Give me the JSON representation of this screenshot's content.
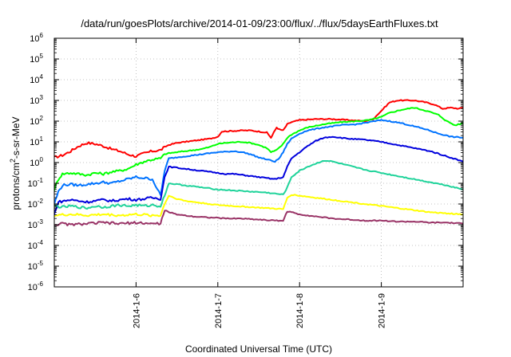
{
  "chart_data": {
    "type": "line",
    "title": "/data/run/goesPlots/archive/2014-01-09/23:00/flux/../flux/5daysEarthFluxes.txt",
    "xlabel": "Coordinated Universal Time (UTC)",
    "ylabel_parts": {
      "base": "protons/cm",
      "sup": "2",
      "rest": "-s-sr-MeV"
    },
    "log_y": true,
    "grid": true,
    "xlim": [
      5.0,
      10.0
    ],
    "ylim_exp": [
      -6,
      6
    ],
    "x_ticks": [
      {
        "value": 6,
        "label": "2014-1-6"
      },
      {
        "value": 7,
        "label": "2014-1-7"
      },
      {
        "value": 8,
        "label": "2014-1-8"
      },
      {
        "value": 9,
        "label": "2014-1-9"
      }
    ],
    "y_tick_base": "10",
    "y_ticks": [
      "-6",
      "-5",
      "-4",
      "-3",
      "-2",
      "-1",
      "0",
      "1",
      "2",
      "3",
      "4",
      "5",
      "6"
    ],
    "series": [
      {
        "color": "#ff0000",
        "log10_values": [
          [
            5.0,
            0.25
          ],
          [
            5.1,
            0.35
          ],
          [
            5.2,
            0.55
          ],
          [
            5.3,
            0.8
          ],
          [
            5.4,
            0.95
          ],
          [
            5.5,
            0.9
          ],
          [
            5.6,
            0.8
          ],
          [
            5.7,
            0.65
          ],
          [
            5.8,
            0.55
          ],
          [
            5.9,
            0.4
          ],
          [
            6.0,
            0.3
          ],
          [
            6.1,
            0.45
          ],
          [
            6.2,
            0.55
          ],
          [
            6.3,
            0.6
          ],
          [
            6.35,
            0.75
          ],
          [
            6.4,
            0.85
          ],
          [
            6.5,
            0.95
          ],
          [
            6.6,
            1.0
          ],
          [
            6.7,
            1.05
          ],
          [
            6.8,
            1.1
          ],
          [
            6.9,
            1.15
          ],
          [
            7.0,
            1.25
          ],
          [
            7.05,
            1.5
          ],
          [
            7.15,
            1.52
          ],
          [
            7.3,
            1.55
          ],
          [
            7.4,
            1.55
          ],
          [
            7.5,
            1.5
          ],
          [
            7.6,
            1.45
          ],
          [
            7.65,
            1.2
          ],
          [
            7.72,
            1.7
          ],
          [
            7.75,
            1.6
          ],
          [
            7.8,
            1.55
          ],
          [
            7.85,
            1.85
          ],
          [
            7.9,
            1.95
          ],
          [
            8.0,
            2.05
          ],
          [
            8.2,
            2.1
          ],
          [
            8.4,
            2.1
          ],
          [
            8.6,
            2.05
          ],
          [
            8.8,
            2.0
          ],
          [
            8.9,
            2.1
          ],
          [
            9.0,
            2.5
          ],
          [
            9.1,
            2.9
          ],
          [
            9.2,
            3.0
          ],
          [
            9.4,
            3.0
          ],
          [
            9.55,
            2.9
          ],
          [
            9.65,
            2.8
          ],
          [
            9.75,
            2.6
          ],
          [
            9.85,
            2.65
          ],
          [
            9.95,
            2.6
          ],
          [
            10.0,
            2.65
          ]
        ]
      },
      {
        "color": "#00ff00",
        "log10_values": [
          [
            5.0,
            -1.3
          ],
          [
            5.05,
            -0.8
          ],
          [
            5.1,
            -0.55
          ],
          [
            5.2,
            -0.5
          ],
          [
            5.3,
            -0.55
          ],
          [
            5.4,
            -0.6
          ],
          [
            5.5,
            -0.5
          ],
          [
            5.6,
            -0.55
          ],
          [
            5.7,
            -0.45
          ],
          [
            5.8,
            -0.4
          ],
          [
            5.9,
            -0.3
          ],
          [
            6.0,
            -0.1
          ],
          [
            6.1,
            0.05
          ],
          [
            6.2,
            0.15
          ],
          [
            6.3,
            0.2
          ],
          [
            6.35,
            0.4
          ],
          [
            6.4,
            0.45
          ],
          [
            6.5,
            0.5
          ],
          [
            6.6,
            0.55
          ],
          [
            6.7,
            0.6
          ],
          [
            6.8,
            0.65
          ],
          [
            6.9,
            0.75
          ],
          [
            7.0,
            0.9
          ],
          [
            7.1,
            0.95
          ],
          [
            7.2,
            0.98
          ],
          [
            7.3,
            1.0
          ],
          [
            7.4,
            0.95
          ],
          [
            7.5,
            0.85
          ],
          [
            7.6,
            0.7
          ],
          [
            7.65,
            0.5
          ],
          [
            7.72,
            0.6
          ],
          [
            7.8,
            0.9
          ],
          [
            7.85,
            1.2
          ],
          [
            7.9,
            1.35
          ],
          [
            8.0,
            1.55
          ],
          [
            8.1,
            1.7
          ],
          [
            8.3,
            1.85
          ],
          [
            8.5,
            1.95
          ],
          [
            8.7,
            2.0
          ],
          [
            8.85,
            2.05
          ],
          [
            9.0,
            2.2
          ],
          [
            9.1,
            2.4
          ],
          [
            9.25,
            2.55
          ],
          [
            9.4,
            2.65
          ],
          [
            9.55,
            2.5
          ],
          [
            9.7,
            2.3
          ],
          [
            9.8,
            2.0
          ],
          [
            9.9,
            1.8
          ],
          [
            10.0,
            1.9
          ]
        ]
      },
      {
        "color": "#0073ff",
        "log10_values": [
          [
            5.0,
            -2.0
          ],
          [
            5.05,
            -1.4
          ],
          [
            5.1,
            -1.1
          ],
          [
            5.2,
            -1.05
          ],
          [
            5.3,
            -1.1
          ],
          [
            5.4,
            -1.05
          ],
          [
            5.5,
            -1.0
          ],
          [
            5.6,
            -0.95
          ],
          [
            5.7,
            -1.0
          ],
          [
            5.8,
            -0.9
          ],
          [
            5.9,
            -0.8
          ],
          [
            6.0,
            -0.7
          ],
          [
            6.1,
            -0.75
          ],
          [
            6.2,
            -0.8
          ],
          [
            6.3,
            -1.6
          ],
          [
            6.35,
            -0.4
          ],
          [
            6.4,
            0.2
          ],
          [
            6.5,
            0.25
          ],
          [
            6.6,
            0.3
          ],
          [
            6.7,
            0.35
          ],
          [
            6.8,
            0.4
          ],
          [
            6.9,
            0.45
          ],
          [
            7.0,
            0.5
          ],
          [
            7.1,
            0.52
          ],
          [
            7.2,
            0.55
          ],
          [
            7.3,
            0.5
          ],
          [
            7.4,
            0.4
          ],
          [
            7.5,
            0.25
          ],
          [
            7.6,
            0.15
          ],
          [
            7.7,
            0.05
          ],
          [
            7.75,
            0.2
          ],
          [
            7.8,
            0.5
          ],
          [
            7.85,
            0.9
          ],
          [
            7.9,
            1.15
          ],
          [
            8.0,
            1.4
          ],
          [
            8.1,
            1.55
          ],
          [
            8.3,
            1.7
          ],
          [
            8.5,
            1.8
          ],
          [
            8.7,
            1.85
          ],
          [
            8.85,
            1.95
          ],
          [
            9.0,
            2.05
          ],
          [
            9.1,
            2.0
          ],
          [
            9.25,
            1.9
          ],
          [
            9.4,
            1.75
          ],
          [
            9.55,
            1.6
          ],
          [
            9.7,
            1.4
          ],
          [
            9.85,
            1.25
          ],
          [
            10.0,
            1.2
          ]
        ]
      },
      {
        "color": "#0000dd",
        "log10_values": [
          [
            5.0,
            -2.5
          ],
          [
            5.05,
            -1.9
          ],
          [
            5.2,
            -1.8
          ],
          [
            5.3,
            -1.85
          ],
          [
            5.4,
            -1.9
          ],
          [
            5.5,
            -1.85
          ],
          [
            5.6,
            -1.8
          ],
          [
            5.7,
            -1.85
          ],
          [
            5.8,
            -1.8
          ],
          [
            5.9,
            -1.75
          ],
          [
            6.0,
            -1.8
          ],
          [
            6.1,
            -1.75
          ],
          [
            6.2,
            -1.7
          ],
          [
            6.3,
            -1.75
          ],
          [
            6.35,
            -0.7
          ],
          [
            6.4,
            -0.2
          ],
          [
            6.5,
            -0.25
          ],
          [
            6.6,
            -0.3
          ],
          [
            6.7,
            -0.35
          ],
          [
            6.8,
            -0.4
          ],
          [
            6.9,
            -0.45
          ],
          [
            7.0,
            -0.5
          ],
          [
            7.1,
            -0.55
          ],
          [
            7.2,
            -0.55
          ],
          [
            7.3,
            -0.6
          ],
          [
            7.4,
            -0.65
          ],
          [
            7.5,
            -0.7
          ],
          [
            7.6,
            -0.75
          ],
          [
            7.7,
            -0.8
          ],
          [
            7.8,
            -0.7
          ],
          [
            7.85,
            -0.2
          ],
          [
            7.9,
            0.2
          ],
          [
            8.0,
            0.5
          ],
          [
            8.1,
            0.8
          ],
          [
            8.2,
            1.05
          ],
          [
            8.3,
            1.2
          ],
          [
            8.4,
            1.25
          ],
          [
            8.5,
            1.2
          ],
          [
            8.6,
            1.15
          ],
          [
            8.8,
            1.1
          ],
          [
            9.0,
            1.0
          ],
          [
            9.2,
            0.85
          ],
          [
            9.4,
            0.7
          ],
          [
            9.6,
            0.55
          ],
          [
            9.8,
            0.3
          ],
          [
            10.0,
            0.05
          ]
        ]
      },
      {
        "color": "#1fd39a",
        "log10_values": [
          [
            5.0,
            -2.1
          ],
          [
            5.1,
            -2.15
          ],
          [
            5.2,
            -2.1
          ],
          [
            5.3,
            -2.15
          ],
          [
            5.4,
            -2.2
          ],
          [
            5.5,
            -2.1
          ],
          [
            5.6,
            -2.15
          ],
          [
            5.7,
            -2.1
          ],
          [
            5.8,
            -2.05
          ],
          [
            5.9,
            -2.1
          ],
          [
            6.0,
            -2.05
          ],
          [
            6.1,
            -2.1
          ],
          [
            6.2,
            -2.05
          ],
          [
            6.3,
            -2.1
          ],
          [
            6.35,
            -1.6
          ],
          [
            6.4,
            -1.0
          ],
          [
            6.5,
            -1.05
          ],
          [
            6.6,
            -1.1
          ],
          [
            6.7,
            -1.15
          ],
          [
            6.8,
            -1.2
          ],
          [
            6.9,
            -1.25
          ],
          [
            7.0,
            -1.3
          ],
          [
            7.2,
            -1.35
          ],
          [
            7.4,
            -1.4
          ],
          [
            7.6,
            -1.45
          ],
          [
            7.8,
            -1.55
          ],
          [
            7.85,
            -1.2
          ],
          [
            7.9,
            -0.7
          ],
          [
            8.0,
            -0.4
          ],
          [
            8.1,
            -0.2
          ],
          [
            8.2,
            -0.05
          ],
          [
            8.3,
            0.1
          ],
          [
            8.4,
            0.05
          ],
          [
            8.5,
            -0.05
          ],
          [
            8.6,
            -0.15
          ],
          [
            8.8,
            -0.35
          ],
          [
            9.0,
            -0.5
          ],
          [
            9.2,
            -0.65
          ],
          [
            9.4,
            -0.8
          ],
          [
            9.6,
            -0.95
          ],
          [
            9.8,
            -1.1
          ],
          [
            10.0,
            -1.3
          ]
        ]
      },
      {
        "color": "#ffff00",
        "log10_values": [
          [
            5.0,
            -2.55
          ],
          [
            5.2,
            -2.5
          ],
          [
            5.4,
            -2.55
          ],
          [
            5.6,
            -2.5
          ],
          [
            5.8,
            -2.55
          ],
          [
            6.0,
            -2.5
          ],
          [
            6.2,
            -2.55
          ],
          [
            6.3,
            -2.55
          ],
          [
            6.35,
            -2.0
          ],
          [
            6.4,
            -1.6
          ],
          [
            6.5,
            -1.75
          ],
          [
            6.6,
            -1.85
          ],
          [
            6.8,
            -1.95
          ],
          [
            7.0,
            -2.05
          ],
          [
            7.2,
            -2.1
          ],
          [
            7.4,
            -2.15
          ],
          [
            7.6,
            -2.2
          ],
          [
            7.8,
            -2.25
          ],
          [
            7.85,
            -1.7
          ],
          [
            7.9,
            -1.55
          ],
          [
            8.0,
            -1.6
          ],
          [
            8.2,
            -1.7
          ],
          [
            8.4,
            -1.8
          ],
          [
            8.6,
            -1.9
          ],
          [
            8.8,
            -2.0
          ],
          [
            9.0,
            -2.1
          ],
          [
            9.2,
            -2.2
          ],
          [
            9.4,
            -2.3
          ],
          [
            9.6,
            -2.4
          ],
          [
            9.8,
            -2.45
          ],
          [
            10.0,
            -2.5
          ]
        ]
      },
      {
        "color": "#993366",
        "log10_values": [
          [
            5.0,
            -3.0
          ],
          [
            5.1,
            -2.95
          ],
          [
            5.2,
            -3.0
          ],
          [
            5.4,
            -2.95
          ],
          [
            5.6,
            -2.9
          ],
          [
            5.8,
            -2.95
          ],
          [
            6.0,
            -2.9
          ],
          [
            6.2,
            -2.95
          ],
          [
            6.3,
            -2.95
          ],
          [
            6.35,
            -2.3
          ],
          [
            6.4,
            -2.4
          ],
          [
            6.5,
            -2.5
          ],
          [
            6.7,
            -2.6
          ],
          [
            6.9,
            -2.65
          ],
          [
            7.1,
            -2.7
          ],
          [
            7.3,
            -2.7
          ],
          [
            7.5,
            -2.75
          ],
          [
            7.7,
            -2.8
          ],
          [
            7.8,
            -2.8
          ],
          [
            7.85,
            -2.35
          ],
          [
            7.9,
            -2.4
          ],
          [
            8.0,
            -2.5
          ],
          [
            8.2,
            -2.6
          ],
          [
            8.4,
            -2.7
          ],
          [
            8.6,
            -2.75
          ],
          [
            8.8,
            -2.8
          ],
          [
            9.0,
            -2.8
          ],
          [
            9.2,
            -2.85
          ],
          [
            9.4,
            -2.85
          ],
          [
            9.6,
            -2.9
          ],
          [
            9.8,
            -2.9
          ],
          [
            10.0,
            -2.95
          ]
        ]
      }
    ]
  }
}
